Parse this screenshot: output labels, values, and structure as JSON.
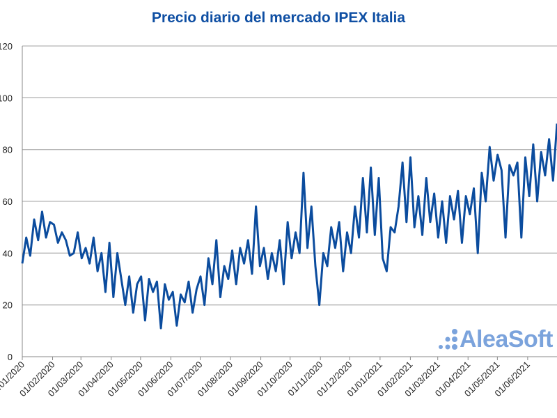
{
  "chart_data": {
    "type": "line",
    "title": "Precio diario del mercado IPEX Italia",
    "xlabel": "",
    "ylabel": "",
    "ylim": [
      0,
      120
    ],
    "yticks": [
      "0",
      "20",
      "40",
      "60",
      "80",
      "100",
      "120"
    ],
    "x_range_days": [
      0,
      547
    ],
    "x_start": "01/01/2020",
    "xticks": [
      {
        "label": "01/01/2020",
        "day": 0
      },
      {
        "label": "01/02/2020",
        "day": 31
      },
      {
        "label": "01/03/2020",
        "day": 60
      },
      {
        "label": "01/04/2020",
        "day": 91
      },
      {
        "label": "01/05/2020",
        "day": 121
      },
      {
        "label": "01/06/2020",
        "day": 152
      },
      {
        "label": "01/07/2020",
        "day": 182
      },
      {
        "label": "01/08/2020",
        "day": 213
      },
      {
        "label": "01/09/2020",
        "day": 244
      },
      {
        "label": "01/10/2020",
        "day": 274
      },
      {
        "label": "01/11/2020",
        "day": 305
      },
      {
        "label": "01/12/2020",
        "day": 335
      },
      {
        "label": "01/01/2021",
        "day": 366
      },
      {
        "label": "01/02/2021",
        "day": 397
      },
      {
        "label": "01/03/2021",
        "day": 425
      },
      {
        "label": "01/04/2021",
        "day": 456
      },
      {
        "label": "01/05/2021",
        "day": 486
      },
      {
        "label": "01/06/2021",
        "day": 517
      }
    ],
    "grid": true,
    "series": [
      {
        "name": "IPEX Italia",
        "color": "#0b4c9e",
        "values": [
          36,
          46,
          39,
          53,
          45,
          56,
          46,
          52,
          51,
          44,
          48,
          45,
          39,
          40,
          48,
          38,
          42,
          36,
          46,
          33,
          40,
          25,
          44,
          23,
          40,
          30,
          20,
          31,
          17,
          28,
          31,
          14,
          30,
          25,
          29,
          11,
          28,
          22,
          25,
          12,
          24,
          21,
          29,
          17,
          26,
          31,
          20,
          38,
          28,
          45,
          23,
          35,
          30,
          41,
          28,
          42,
          36,
          45,
          32,
          58,
          35,
          42,
          30,
          40,
          33,
          45,
          28,
          52,
          38,
          48,
          40,
          71,
          42,
          58,
          35,
          20,
          40,
          35,
          50,
          42,
          52,
          33,
          48,
          40,
          58,
          46,
          69,
          48,
          73,
          47,
          69,
          38,
          33,
          50,
          48,
          58,
          75,
          52,
          77,
          50,
          62,
          47,
          69,
          52,
          63,
          46,
          60,
          44,
          62,
          53,
          64,
          44,
          62,
          55,
          65,
          40,
          71,
          60,
          81,
          68,
          78,
          72,
          46,
          74,
          70,
          75,
          46,
          77,
          62,
          82,
          60,
          79,
          70,
          84,
          68,
          90
        ]
      }
    ]
  },
  "logo": {
    "text": "AleaSoft",
    "color": "#7ba3dc"
  }
}
